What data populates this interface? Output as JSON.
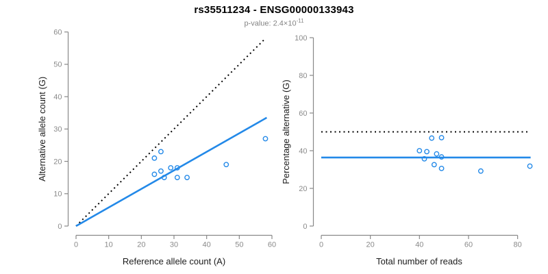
{
  "header": {
    "title": "rs35511234 - ENSG00000133943",
    "subtitle_base": "p-value: 2.4×10",
    "subtitle_exp": "-11"
  },
  "colors": {
    "point_blue": "#2389E8",
    "line_blue": "#2389E8",
    "dotted_black": "#000000",
    "axis_gray": "#888888",
    "tick_label_gray": "#8A8A8A",
    "axis_title_color": "#1A1A1A"
  },
  "chart_data": [
    {
      "type": "scatter",
      "name": "allele-counts-plot",
      "xlabel": "Reference allele count (A)",
      "ylabel": "Alternative allele count (G)",
      "xlim": [
        0,
        60
      ],
      "ylim": [
        0,
        60
      ],
      "xticks": [
        0,
        10,
        20,
        30,
        40,
        50,
        60
      ],
      "yticks": [
        0,
        10,
        20,
        30,
        40,
        50,
        60
      ],
      "grid": false,
      "points": [
        [
          26,
          23
        ],
        [
          24,
          21
        ],
        [
          58,
          27
        ],
        [
          46,
          19
        ],
        [
          29,
          18
        ],
        [
          31,
          18
        ],
        [
          24,
          16
        ],
        [
          26,
          17
        ],
        [
          27,
          15
        ],
        [
          31,
          15
        ],
        [
          34,
          15
        ]
      ],
      "lines": [
        {
          "name": "identity-line",
          "style": "dotted",
          "color": "#000000",
          "from": [
            0,
            0
          ],
          "to": [
            57.9,
            57.9
          ]
        },
        {
          "name": "fit-line",
          "style": "solid",
          "color": "#2389E8",
          "from": [
            0,
            0
          ],
          "to": [
            58.4,
            33.5
          ]
        }
      ]
    },
    {
      "type": "scatter",
      "name": "percentage-plot",
      "xlabel": "Total number of reads",
      "ylabel": "Percentage alternative (G)",
      "xlim": [
        0,
        85
      ],
      "ylim": [
        0,
        100
      ],
      "xticks": [
        0,
        20,
        40,
        60,
        80
      ],
      "yticks": [
        0,
        20,
        40,
        60,
        80,
        100
      ],
      "grid": false,
      "points": [
        [
          49,
          46.9
        ],
        [
          45,
          46.7
        ],
        [
          85,
          31.8
        ],
        [
          65,
          29.2
        ],
        [
          47,
          38.3
        ],
        [
          49,
          36.7
        ],
        [
          40,
          40.0
        ],
        [
          43,
          39.5
        ],
        [
          42,
          35.7
        ],
        [
          46,
          32.6
        ],
        [
          49,
          30.6
        ]
      ],
      "lines": [
        {
          "name": "fifty-percent-line",
          "style": "dotted",
          "color": "#000000",
          "from": [
            0,
            50
          ],
          "to": [
            84,
            50
          ]
        },
        {
          "name": "mean-percentage-line",
          "style": "solid",
          "color": "#2389E8",
          "from": [
            0,
            36.4
          ],
          "to": [
            85.3,
            36.4
          ]
        }
      ]
    }
  ]
}
